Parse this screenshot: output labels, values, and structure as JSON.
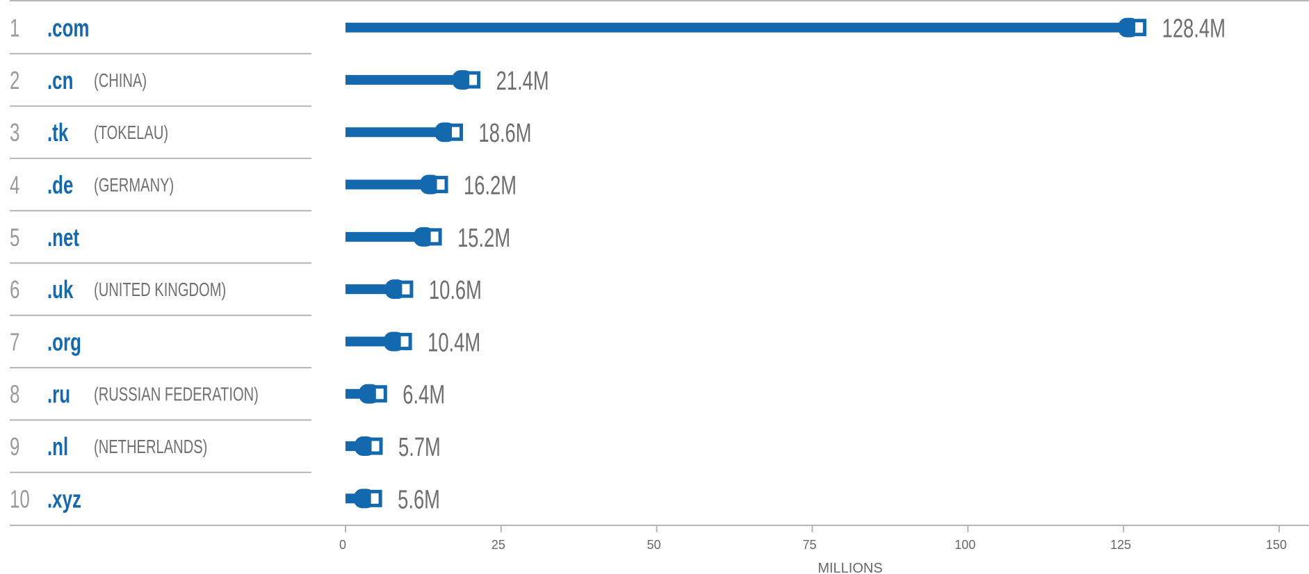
{
  "colors": {
    "bar": "#1468ad",
    "rank": "#9a9a9a",
    "label": "#6e6e6e",
    "rule": "#b5b5b5"
  },
  "chart_data": {
    "type": "bar",
    "orientation": "horizontal",
    "xlabel": "MILLIONS",
    "xlim": [
      0,
      150
    ],
    "xticks": [
      0,
      25,
      50,
      75,
      100,
      125,
      150
    ],
    "rows": [
      {
        "rank": "1",
        "tld": ".com",
        "country": "",
        "value": 128.4,
        "label": "128.4M"
      },
      {
        "rank": "2",
        "tld": ".cn",
        "country": "(CHINA)",
        "value": 21.4,
        "label": "21.4M"
      },
      {
        "rank": "3",
        "tld": ".tk",
        "country": "(TOKELAU)",
        "value": 18.6,
        "label": "18.6M"
      },
      {
        "rank": "4",
        "tld": ".de",
        "country": "(GERMANY)",
        "value": 16.2,
        "label": "16.2M"
      },
      {
        "rank": "5",
        "tld": ".net",
        "country": "",
        "value": 15.2,
        "label": "15.2M"
      },
      {
        "rank": "6",
        "tld": ".uk",
        "country": "(UNITED KINGDOM)",
        "value": 10.6,
        "label": "10.6M"
      },
      {
        "rank": "7",
        "tld": ".org",
        "country": "",
        "value": 10.4,
        "label": "10.4M"
      },
      {
        "rank": "8",
        "tld": ".ru",
        "country": "(RUSSIAN FEDERATION)",
        "value": 6.4,
        "label": "6.4M"
      },
      {
        "rank": "9",
        "tld": ".nl",
        "country": "(NETHERLANDS)",
        "value": 5.7,
        "label": "5.7M"
      },
      {
        "rank": "10",
        "tld": ".xyz",
        "country": "",
        "value": 5.6,
        "label": "5.6M"
      }
    ]
  }
}
